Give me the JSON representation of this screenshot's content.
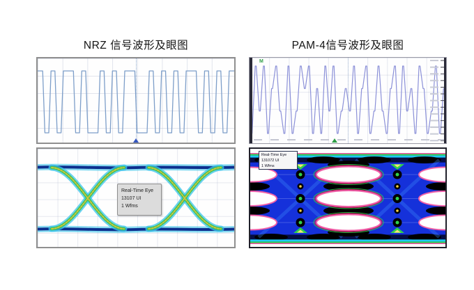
{
  "page": {
    "background": "#ffffff"
  },
  "left": {
    "title": "NRZ 信号波形及眼图",
    "eye_tooltip": {
      "line1": "Real-Time Eye",
      "line2": "13107 UI",
      "line3": "1 Wfms"
    }
  },
  "right": {
    "title": "PAM-4信号波形及眼图",
    "eye_tooltip": {
      "line1": "Real-Time Eye",
      "line2": "131072 UI",
      "line3": "1 Wfms"
    }
  },
  "markers": {
    "pam_trigger_label": "M"
  },
  "colors": {
    "nrz_trace": "#7d9ec9",
    "pam_trace": "#8b90d8",
    "eye_navy": "#0c2f8e",
    "eye_cyan": "#38c3ea",
    "eye_green": "#3fc657",
    "eye_yellow": "#d9c13e",
    "pam_eye_blue": "#1531da",
    "pam_eye_pink": "#f060a8"
  },
  "chart_data": [
    {
      "id": "nrz_waveform",
      "type": "line",
      "title": "NRZ signal waveform",
      "modulation": "NRZ",
      "levels_count": 2,
      "sequence": [
        1,
        0,
        1,
        0,
        1,
        1,
        0,
        1,
        0,
        0,
        1,
        0,
        1,
        0,
        1,
        1,
        0,
        0,
        1,
        0,
        1,
        0,
        1,
        0,
        1,
        1,
        0,
        1,
        0,
        1,
        0,
        1
      ],
      "grid": "on",
      "xlabel": "",
      "ylabel": ""
    },
    {
      "id": "pam4_waveform",
      "type": "line",
      "title": "PAM-4 signal waveform",
      "modulation": "PAM-4",
      "levels_count": 4,
      "sequence": [
        0,
        3,
        1,
        3,
        0,
        2,
        3,
        1,
        0,
        3,
        0,
        1,
        3,
        2,
        3,
        0,
        2,
        0,
        3,
        1,
        3,
        0,
        1,
        2,
        1,
        3,
        0,
        2,
        3,
        0,
        1,
        3,
        1,
        0,
        2,
        3,
        0,
        3,
        1,
        2,
        0,
        3,
        2,
        0,
        1,
        3,
        0,
        2
      ],
      "grid": "on",
      "xlabel": "",
      "ylabel": ""
    },
    {
      "id": "nrz_eye",
      "type": "eye",
      "title": "NRZ eye diagram",
      "modulation": "NRZ",
      "eye_openings": 1,
      "label_lines": [
        "Real-Time Eye",
        "13107 UI",
        "1 Wfms"
      ]
    },
    {
      "id": "pam4_eye",
      "type": "eye",
      "title": "PAM-4 eye diagram",
      "modulation": "PAM-4",
      "eye_openings": 3,
      "label_lines": [
        "Real-Time Eye",
        "131072 UI",
        "1 Wfms"
      ]
    }
  ]
}
